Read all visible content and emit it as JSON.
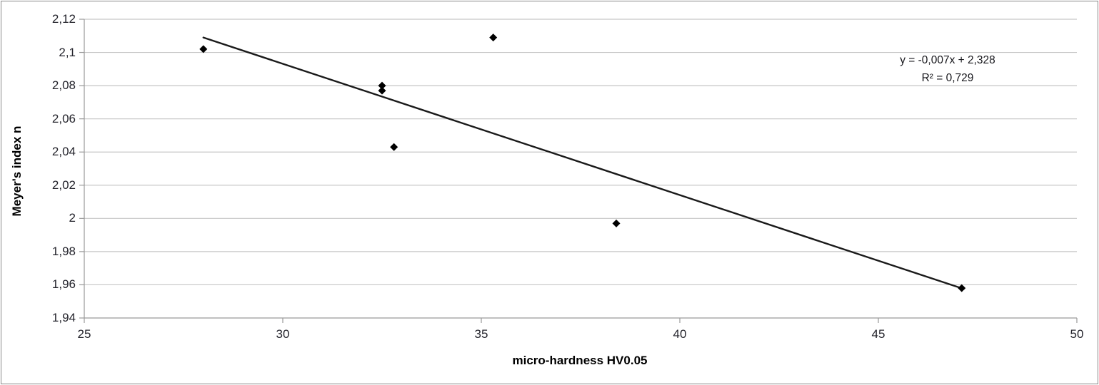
{
  "chart_data": {
    "type": "scatter",
    "title": "",
    "xlabel": "micro-hardness HV0.05",
    "ylabel": "Meyer's index n",
    "xlim": [
      25,
      50
    ],
    "ylim": [
      1.94,
      2.12
    ],
    "x_tick_labels": [
      "25",
      "30",
      "35",
      "40",
      "45",
      "50"
    ],
    "y_tick_labels": [
      "2,12",
      "2,1",
      "2,08",
      "2,06",
      "2,04",
      "2,02",
      "2",
      "1,98",
      "1,96",
      "1,94"
    ],
    "x_tick_values": [
      25,
      30,
      35,
      40,
      45,
      50
    ],
    "y_tick_values": [
      2.12,
      2.1,
      2.08,
      2.06,
      2.04,
      2.02,
      2.0,
      1.98,
      1.96,
      1.94
    ],
    "grid": "horizontal-only",
    "legend_position": "none",
    "marker": "diamond",
    "decimal_separator": "comma",
    "points": [
      {
        "x": 28.0,
        "y": 2.102
      },
      {
        "x": 32.5,
        "y": 2.08
      },
      {
        "x": 32.5,
        "y": 2.077
      },
      {
        "x": 32.8,
        "y": 2.043
      },
      {
        "x": 35.3,
        "y": 2.109
      },
      {
        "x": 38.4,
        "y": 1.997
      },
      {
        "x": 47.1,
        "y": 1.958
      }
    ],
    "trendline": {
      "equation_label": "y = -0,007x + 2,328",
      "r2_label": "R² = 0,729",
      "slope": -0.007,
      "intercept": 2.328,
      "r_squared": 0.729,
      "x_start": 28.0,
      "y_start": 2.109,
      "x_end": 47.15,
      "y_end": 1.9575
    }
  },
  "colors": {
    "marker": "#000000",
    "trendline": "#1a1a1a",
    "gridline": "#c6c6c6",
    "axis_line": "#9a9a9a",
    "tick_text": "#24242c",
    "title_text": "#000000",
    "frame_border": "#898989",
    "background": "#ffffff"
  }
}
